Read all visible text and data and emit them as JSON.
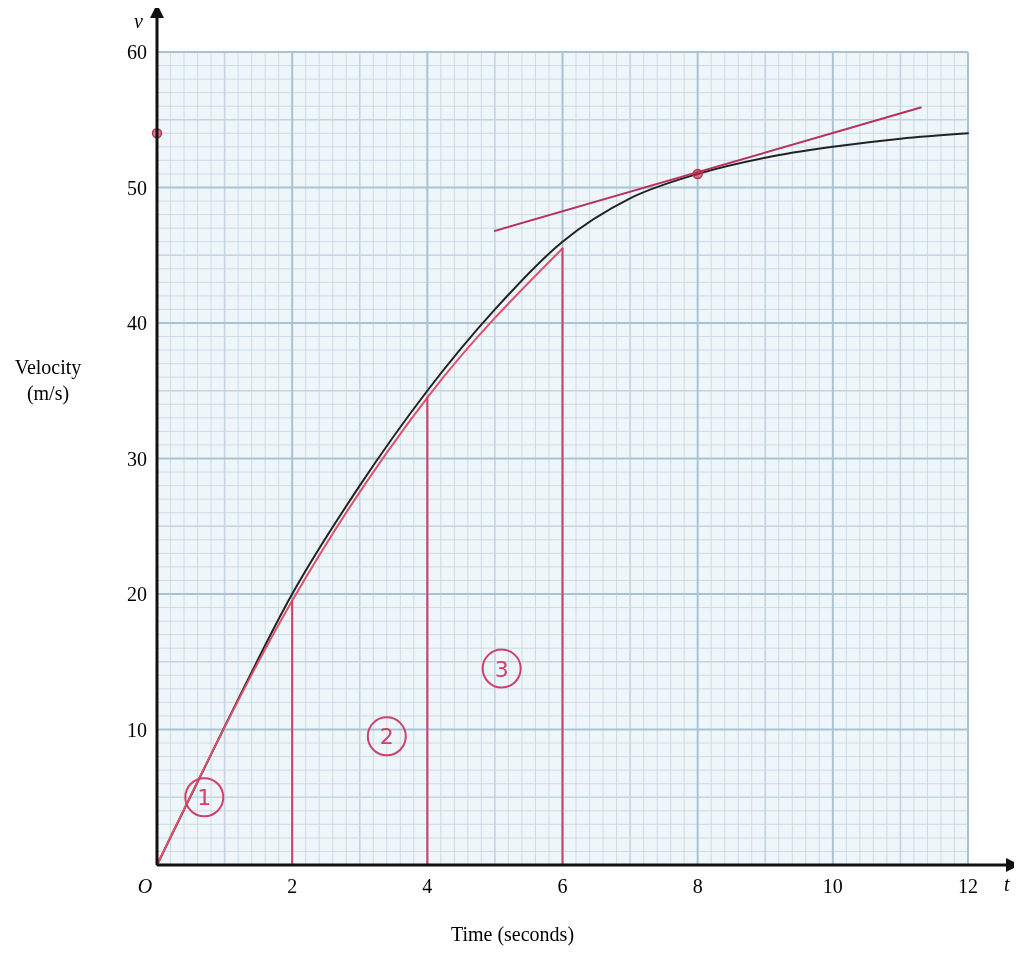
{
  "chart_data": {
    "type": "line",
    "xlabel": "Time (seconds)",
    "ylabel": "Velocity (m/s)",
    "xlim": [
      0,
      12
    ],
    "ylim": [
      0,
      60
    ],
    "xticks": [
      {
        "value": 0,
        "label": "O"
      },
      2,
      4,
      6,
      8,
      10,
      12
    ],
    "yticks": [
      {
        "value": 0,
        "label": null
      },
      10,
      20,
      30,
      40,
      50,
      60
    ],
    "grid": true,
    "line_style": "solid",
    "series": [
      {
        "color": "#222222",
        "x": [
          0,
          1,
          2,
          3,
          4,
          5,
          6,
          7,
          8,
          9,
          10,
          11,
          12
        ],
        "values": [
          0,
          10.2,
          20,
          28,
          35,
          41,
          46,
          49.2,
          51,
          52.2,
          53,
          53.6,
          54
        ]
      },
      {
        "color": "#e0506a",
        "x": [
          0,
          2,
          4,
          6
        ],
        "values": [
          0,
          19.5,
          34.5,
          45.5
        ]
      },
      {
        "color": "#d0406a",
        "x": [
          2,
          2
        ],
        "values": [
          0,
          19.5
        ]
      },
      {
        "color": "#d0406a",
        "x": [
          4,
          4
        ],
        "values": [
          0,
          34.5
        ]
      },
      {
        "color": "#d0406a",
        "x": [
          6,
          6
        ],
        "values": [
          0,
          45.5
        ]
      },
      {
        "color": "#b8305a",
        "x": [
          5,
          11.3
        ],
        "values": [
          46.8,
          55.9
        ]
      },
      {
        "type": "scatter",
        "color": "#c03050",
        "x": [
          8
        ],
        "values": [
          51
        ]
      },
      {
        "type": "scatter",
        "color": "#c03050",
        "x": [
          0
        ],
        "values": [
          54
        ]
      }
    ],
    "annotations": [
      "v",
      "t",
      {
        "text": "1",
        "x": 0.7,
        "y": 5
      },
      {
        "text": "2",
        "x": 3.4,
        "y": 9.5
      },
      {
        "text": "3",
        "x": 5.1,
        "y": 14.5
      }
    ]
  }
}
